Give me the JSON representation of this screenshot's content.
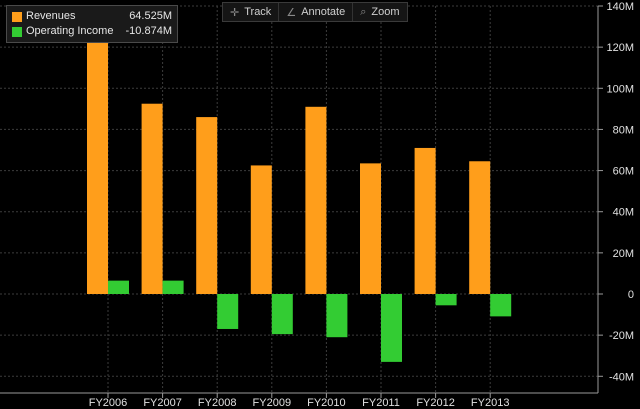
{
  "toolbar": {
    "track_label": "Track",
    "annotate_label": "Annotate",
    "zoom_label": "Zoom"
  },
  "legend": [
    {
      "name": "Revenues",
      "value": "64.525M",
      "color": "#ff9e1b"
    },
    {
      "name": "Operating Income",
      "value": "-10.874M",
      "color": "#33cc33"
    }
  ],
  "chart_data": {
    "type": "bar",
    "categories": [
      "FY2006",
      "FY2007",
      "FY2008",
      "FY2009",
      "FY2010",
      "FY2011",
      "FY2012",
      "FY2013"
    ],
    "series": [
      {
        "name": "Revenues",
        "color": "#ff9e1b",
        "values": [
          125,
          92.5,
          86,
          62.5,
          91,
          63.5,
          71,
          64.525
        ]
      },
      {
        "name": "Operating Income",
        "color": "#33cc33",
        "values": [
          6.5,
          6.5,
          -17,
          -19.5,
          -21,
          -33,
          -5.5,
          -10.874
        ]
      }
    ],
    "y_ticks": [
      "140M",
      "120M",
      "100M",
      "80M",
      "60M",
      "40M",
      "20M",
      "0",
      "-20M",
      "-40M"
    ],
    "ylim": [
      -40,
      140
    ],
    "y_axis_side": "right",
    "grid": true,
    "legend_position": "top-left",
    "background": "#000000"
  }
}
